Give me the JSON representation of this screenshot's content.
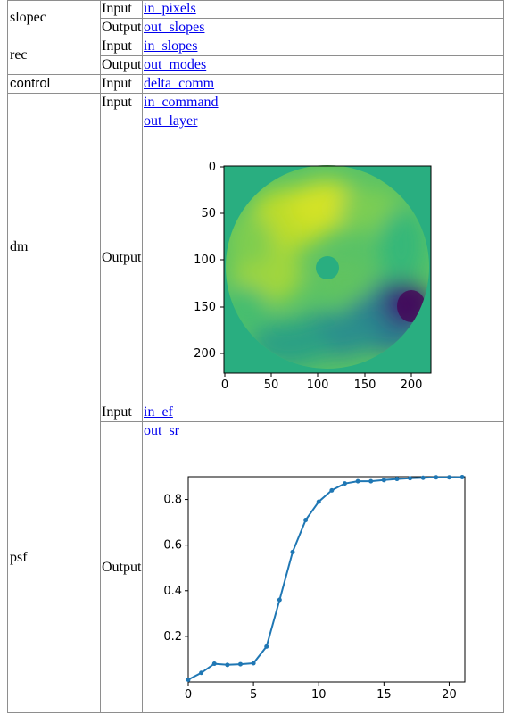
{
  "rows": [
    {
      "name": "slopec",
      "ports": [
        {
          "dir": "Input",
          "link": "in_pixels"
        },
        {
          "dir": "Output",
          "link": "out_slopes"
        }
      ]
    },
    {
      "name": "rec",
      "ports": [
        {
          "dir": "Input",
          "link": "in_slopes"
        },
        {
          "dir": "Output",
          "link": "out_modes"
        }
      ]
    },
    {
      "name": "control",
      "ports": [
        {
          "dir": "Input",
          "link": "delta_comm"
        }
      ]
    },
    {
      "name": "dm",
      "ports": [
        {
          "dir": "Input",
          "link": "in_command"
        },
        {
          "dir": "Output",
          "link": "out_layer"
        }
      ]
    },
    {
      "name": "psf",
      "ports": [
        {
          "dir": "Input",
          "link": "in_ef"
        },
        {
          "dir": "Output",
          "link": "out_sr"
        }
      ]
    }
  ],
  "chart_data": [
    {
      "type": "heatmap",
      "title": "",
      "x_ticks": [
        0,
        50,
        100,
        150,
        200
      ],
      "y_ticks": [
        0,
        50,
        100,
        150,
        200
      ],
      "xlim": [
        0,
        220
      ],
      "ylim": [
        220,
        0
      ],
      "colormap": "viridis",
      "background_color": "#29ae80"
    },
    {
      "type": "line",
      "title": "",
      "xlabel": "",
      "ylabel": "",
      "x": [
        0,
        1,
        2,
        3,
        4,
        5,
        6,
        7,
        8,
        9,
        10,
        11,
        12,
        13,
        14,
        15,
        16,
        17,
        18,
        19,
        20,
        21
      ],
      "y": [
        0.01,
        0.04,
        0.08,
        0.075,
        0.078,
        0.082,
        0.155,
        0.36,
        0.57,
        0.71,
        0.79,
        0.84,
        0.87,
        0.88,
        0.88,
        0.885,
        0.89,
        0.893,
        0.895,
        0.897,
        0.897,
        0.898
      ],
      "x_ticks": [
        0,
        5,
        10,
        15,
        20
      ],
      "y_ticks": [
        0.2,
        0.4,
        0.6,
        0.8
      ],
      "xlim": [
        0,
        21.2
      ],
      "ylim": [
        0.0,
        0.9
      ],
      "color": "#1f77b4"
    }
  ]
}
